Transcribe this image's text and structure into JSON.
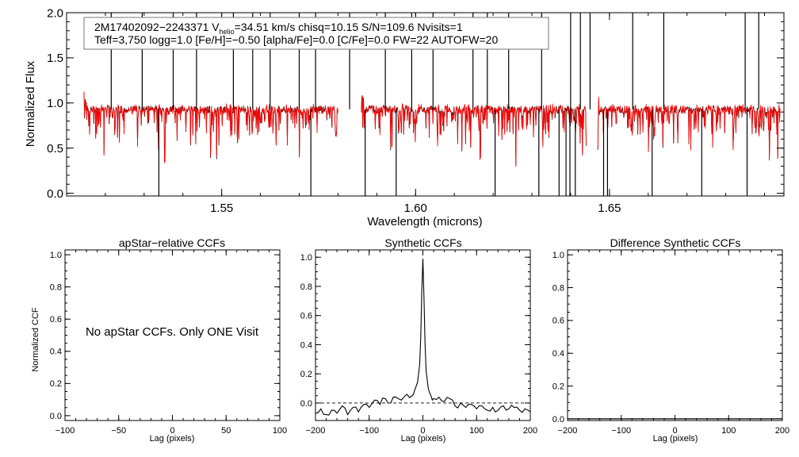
{
  "colors": {
    "observed": "#000000",
    "model": "#ff0000",
    "zero_line": "#000000"
  },
  "chart_data": [
    {
      "type": "line",
      "id": "spectrum",
      "title": "",
      "xlabel": "Wavelength (microns)",
      "ylabel": "Normalized Flux",
      "xlim": [
        1.51,
        1.695
      ],
      "ylim": [
        -0.03,
        2.0
      ],
      "xticks": [
        1.55,
        1.6,
        1.65
      ],
      "xtick_labels": [
        "1.55",
        "1.60",
        "1.65"
      ],
      "yticks": [
        0.0,
        0.5,
        1.0,
        1.5,
        2.0
      ],
      "ytick_labels": [
        "0.0",
        "0.5",
        "1.0",
        "1.5",
        "2.0"
      ],
      "annotation": {
        "line1_prefix": "2M17402092−2243371  V",
        "line1_sub": "helio",
        "line1_suffix": "=34.51 km/s  chisq=10.15  S/N=109.6  Nvisits=1",
        "line2": "Teff=3,750 logg=1.0 [Fe/H]=−0.50 [alpha/Fe]=0.0 [C/Fe]=0.0 FW=22 AUTOFW=20"
      },
      "chip_ranges": [
        [
          1.5145,
          1.58
        ],
        [
          1.586,
          1.644
        ],
        [
          1.647,
          1.694
        ]
      ],
      "spikes_up": [
        1.5215,
        1.5295,
        1.5375,
        1.5435,
        1.553,
        1.558,
        1.5625,
        1.57,
        1.5742,
        1.583,
        1.5922,
        1.599,
        1.6045,
        1.6148,
        1.6185,
        1.624,
        1.6325,
        1.64,
        1.6425,
        1.645,
        1.656,
        1.664,
        1.685,
        1.6885
      ],
      "spikes_down": [
        1.5338,
        1.573,
        1.587,
        1.595,
        1.6205,
        1.6318,
        1.637,
        1.6388,
        1.6398,
        1.6412,
        1.6485,
        1.6495,
        1.661,
        1.6738,
        1.6855
      ],
      "series": [
        {
          "name": "",
          "role": "observed",
          "continuum": 0.93
        },
        {
          "name": "",
          "role": "model",
          "continuum": 0.93
        }
      ]
    },
    {
      "type": "line",
      "id": "apstar-ccf",
      "title": "apStar−relative CCFs",
      "xlabel": "Lag (pixels)",
      "ylabel": "Normalized CCF",
      "xlim": [
        -100,
        100
      ],
      "ylim": [
        -0.03,
        1.03
      ],
      "xticks": [
        -100,
        -50,
        0,
        50,
        100
      ],
      "xtick_labels": [
        "−100",
        "−50",
        "0",
        "50",
        "100"
      ],
      "yticks": [
        0.0,
        0.2,
        0.4,
        0.6,
        0.8,
        1.0
      ],
      "ytick_labels": [
        "0.0",
        "0.2",
        "0.4",
        "0.6",
        "0.8",
        "1.0"
      ],
      "message": "No apStar CCFs.  Only ONE Visit",
      "series": []
    },
    {
      "type": "line",
      "id": "synthetic-ccf",
      "title": "Synthetic CCFs",
      "xlabel": "Lag (pixels)",
      "ylabel": "",
      "xlim": [
        -200,
        200
      ],
      "ylim": [
        -0.12,
        1.05
      ],
      "xticks": [
        -200,
        -100,
        0,
        100,
        200
      ],
      "xtick_labels": [
        "−200",
        "−100",
        "0",
        "100",
        "200"
      ],
      "yticks": [
        0.0,
        0.2,
        0.4,
        0.6,
        0.8,
        1.0
      ],
      "ytick_labels": [
        "0.0",
        "0.2",
        "0.4",
        "0.6",
        "0.8",
        "1.0"
      ],
      "zero_line": 0.0,
      "series": [
        {
          "name": "",
          "x": [
            -200,
            -190,
            -180,
            -170,
            -160,
            -150,
            -140,
            -130,
            -120,
            -110,
            -100,
            -90,
            -80,
            -70,
            -60,
            -50,
            -40,
            -30,
            -20,
            -15,
            -10,
            -6,
            -4,
            -2,
            0,
            2,
            4,
            6,
            10,
            15,
            20,
            30,
            40,
            50,
            60,
            70,
            80,
            90,
            100,
            110,
            120,
            130,
            140,
            150,
            160,
            170,
            180,
            190,
            200
          ],
          "y": [
            -0.07,
            -0.04,
            -0.08,
            -0.05,
            -0.07,
            -0.02,
            -0.08,
            -0.03,
            -0.06,
            -0.01,
            -0.03,
            0.02,
            -0.01,
            0.03,
            0.0,
            0.04,
            0.02,
            0.06,
            0.05,
            0.09,
            0.14,
            0.26,
            0.45,
            0.76,
            0.99,
            0.72,
            0.41,
            0.22,
            0.1,
            0.05,
            0.03,
            0.04,
            0.01,
            0.03,
            -0.02,
            0.0,
            -0.03,
            -0.01,
            -0.04,
            -0.02,
            -0.05,
            -0.03,
            -0.05,
            -0.02,
            -0.04,
            -0.03,
            -0.05,
            -0.04,
            -0.06
          ]
        }
      ]
    },
    {
      "type": "line",
      "id": "difference-ccf",
      "title": "Difference Synthetic CCFs",
      "xlabel": "Lag (pixels)",
      "ylabel": "",
      "xlim": [
        -200,
        200
      ],
      "ylim": [
        -0.01,
        1.03
      ],
      "xticks": [
        -200,
        -100,
        0,
        100,
        200
      ],
      "xtick_labels": [
        "−200",
        "−100",
        "0",
        "100",
        "200"
      ],
      "yticks": [
        0.0,
        0.2,
        0.4,
        0.6,
        0.8,
        1.0
      ],
      "ytick_labels": [
        "0.0",
        "0.2",
        "0.4",
        "0.6",
        "0.8",
        "1.0"
      ],
      "series": [
        {
          "name": "",
          "x": [
            -200,
            200
          ],
          "y": [
            0.0,
            0.0
          ]
        }
      ]
    }
  ]
}
